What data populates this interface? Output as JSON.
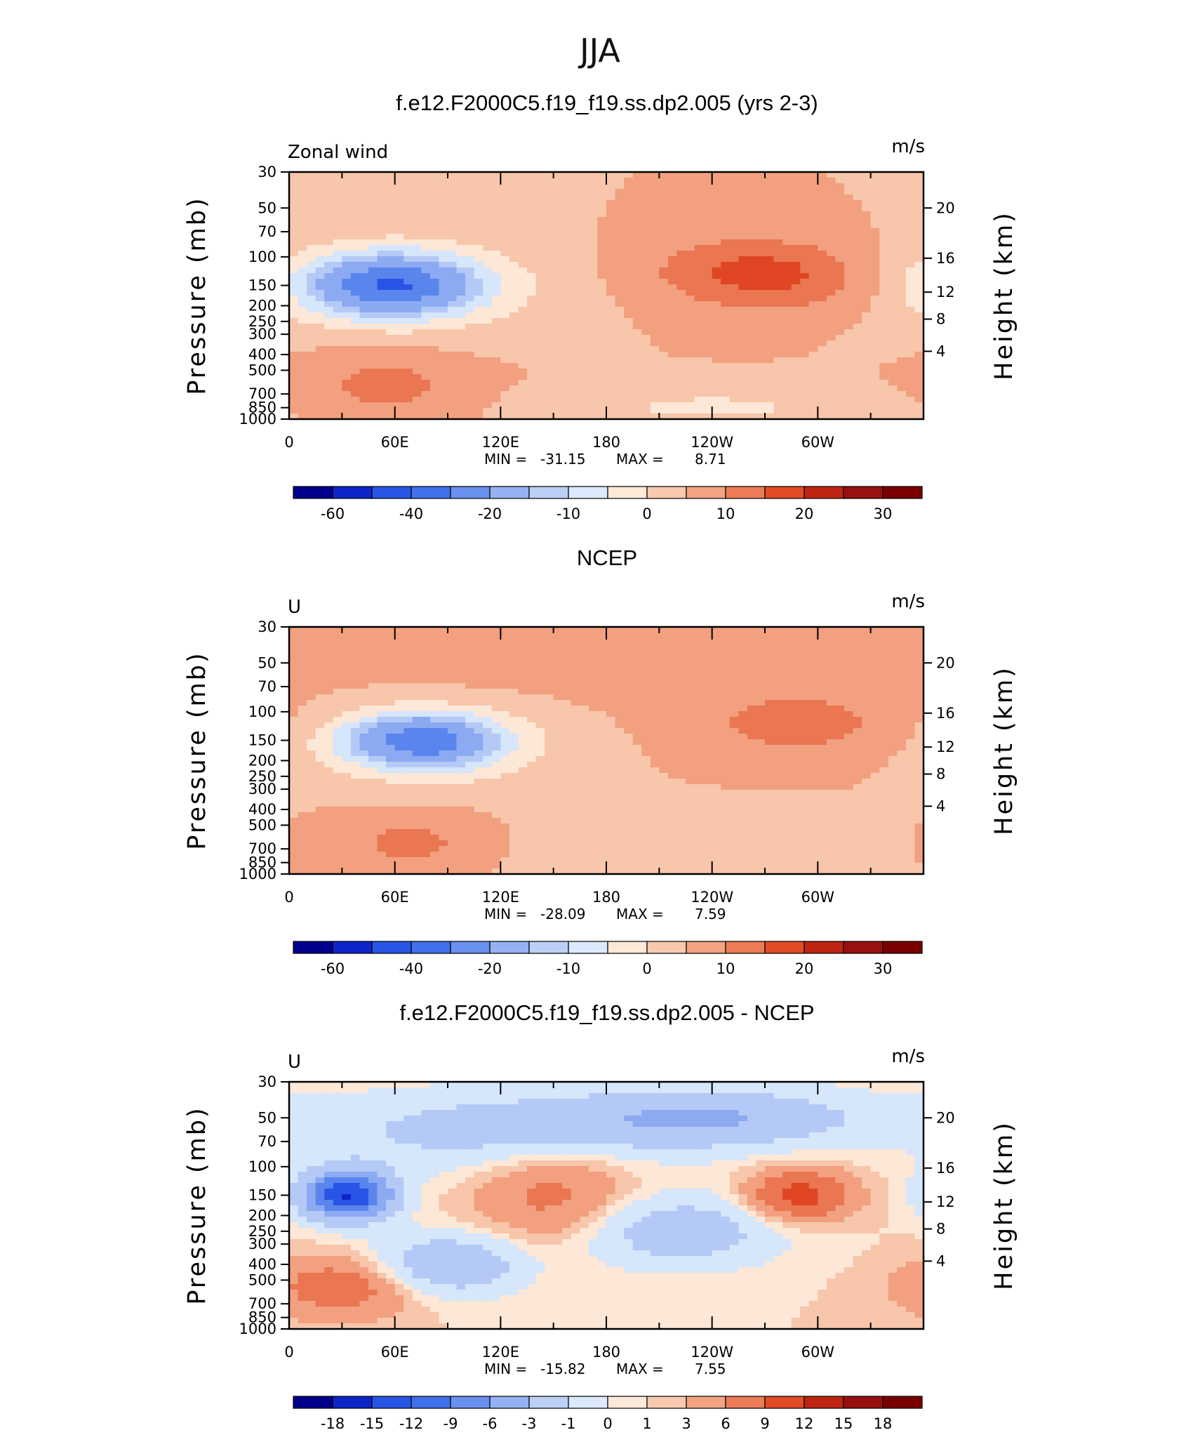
{
  "figure": {
    "season": "JJA"
  },
  "palette": {
    "standard": [
      "#00008c",
      "#0c25c9",
      "#2955e6",
      "#5a85ed",
      "#8caaf2",
      "#b4c9f5",
      "#d6e6fb",
      "#fde7d6",
      "#f7c6ab",
      "#f2a07f",
      "#ea7652",
      "#e04623",
      "#b81e10",
      "#8b0a0a",
      "#6b0000"
    ]
  },
  "x_ticks": [
    "0",
    "60E",
    "120E",
    "180",
    "120W",
    "60W"
  ],
  "p_ticks": [
    "30",
    "50",
    "70",
    "100",
    "150",
    "200",
    "250",
    "300",
    "400",
    "500",
    "700",
    "850",
    "1000"
  ],
  "h_ticks": [
    "20",
    "16",
    "12",
    "8",
    "4"
  ],
  "panels": [
    {
      "title": "f.e12.F2000C5.f19_f19.ss.dp2.005 (yrs 2-3)",
      "corner_left": "Zonal wind",
      "corner_right": "m/s",
      "ylabel_left": "Pressure (mb)",
      "ylabel_right": "Height (km)",
      "stats": {
        "min_label": "MIN =",
        "min": "-31.15",
        "max_label": "MAX =",
        "max": "8.71"
      },
      "colorbar_labels": [
        "-60",
        "-40",
        "-20",
        "-10",
        "0",
        "10",
        "20",
        "30"
      ],
      "chart_data": {
        "type": "heatmap",
        "variable": "Zonal wind",
        "units": "m/s",
        "min": -31.15,
        "max": 8.71,
        "levels": [
          -70,
          -60,
          -50,
          -40,
          -30,
          -20,
          -15,
          -10,
          -5,
          0,
          5,
          10,
          15,
          20,
          25,
          30
        ],
        "blobs": [
          {
            "lon": 57,
            "p": 150,
            "value": -30,
            "sx": 30,
            "sy": 0.28
          },
          {
            "lon": 62,
            "p": 150,
            "value": -12,
            "sx": 55,
            "sy": 0.45
          },
          {
            "lon": 255,
            "p": 120,
            "value": 8,
            "sx": 40,
            "sy": 0.35
          },
          {
            "lon": 290,
            "p": 140,
            "value": 6,
            "sx": 40,
            "sy": 0.35
          },
          {
            "lon": 55,
            "p": 600,
            "value": 7,
            "sx": 30,
            "sy": 0.35
          },
          {
            "lon": 240,
            "p": 850,
            "value": -6,
            "sx": 60,
            "sy": 0.2
          }
        ]
      }
    },
    {
      "title": "NCEP",
      "corner_left": "U",
      "corner_right": "m/s",
      "ylabel_left": "Pressure (mb)",
      "ylabel_right": "Height (km)",
      "stats": {
        "min_label": "MIN =",
        "min": "-28.09",
        "max_label": "MAX =",
        "max": "7.59"
      },
      "colorbar_labels": [
        "-60",
        "-40",
        "-20",
        "-10",
        "0",
        "10",
        "20",
        "30"
      ],
      "chart_data": {
        "type": "heatmap",
        "variable": "U",
        "units": "m/s",
        "min": -28.09,
        "max": 7.59,
        "levels": [
          -70,
          -60,
          -50,
          -40,
          -30,
          -20,
          -15,
          -10,
          -5,
          0,
          5,
          10,
          15,
          20,
          25,
          30
        ],
        "blobs": [
          {
            "lon": 75,
            "p": 150,
            "value": -28,
            "sx": 28,
            "sy": 0.25
          },
          {
            "lon": 80,
            "p": 160,
            "value": -10,
            "sx": 50,
            "sy": 0.4
          },
          {
            "lon": 290,
            "p": 120,
            "value": 7,
            "sx": 45,
            "sy": 0.35
          },
          {
            "lon": 70,
            "p": 650,
            "value": 7,
            "sx": 30,
            "sy": 0.3
          },
          {
            "lon": 180,
            "p": 45,
            "value": 2,
            "sx": 150,
            "sy": 0.5
          },
          {
            "lon": 200,
            "p": 700,
            "value": -2,
            "sx": 80,
            "sy": 0.4
          }
        ]
      }
    },
    {
      "title": "f.e12.F2000C5.f19_f19.ss.dp2.005 - NCEP",
      "corner_left": "U",
      "corner_right": "m/s",
      "ylabel_left": "Pressure (mb)",
      "ylabel_right": "Height (km)",
      "stats": {
        "min_label": "MIN =",
        "min": "-15.82",
        "max_label": "MAX =",
        "max": "7.55"
      },
      "colorbar_labels": [
        "-18",
        "-15",
        "-12",
        "-9",
        "-6",
        "-3",
        "-1",
        "0",
        "1",
        "3",
        "6",
        "9",
        "12",
        "15",
        "18"
      ],
      "chart_data": {
        "type": "heatmap",
        "variable": "U",
        "units": "m/s",
        "min": -15.82,
        "max": 7.55,
        "levels": [
          -21,
          -18,
          -15,
          -12,
          -9,
          -6,
          -3,
          -1,
          0,
          1,
          3,
          6,
          9,
          12,
          15,
          18
        ],
        "blobs": [
          {
            "lon": 33,
            "p": 150,
            "value": -15,
            "sx": 18,
            "sy": 0.25
          },
          {
            "lon": 290,
            "p": 150,
            "value": 7.5,
            "sx": 20,
            "sy": 0.25
          },
          {
            "lon": 150,
            "p": 150,
            "value": 4,
            "sx": 30,
            "sy": 0.5
          },
          {
            "lon": 30,
            "p": 550,
            "value": 5,
            "sx": 28,
            "sy": 0.3
          },
          {
            "lon": 240,
            "p": 50,
            "value": -6,
            "sx": 60,
            "sy": 0.3
          },
          {
            "lon": 220,
            "p": 250,
            "value": -5,
            "sx": 40,
            "sy": 0.35
          },
          {
            "lon": 90,
            "p": 400,
            "value": -6,
            "sx": 30,
            "sy": 0.3
          },
          {
            "lon": 110,
            "p": 60,
            "value": -4,
            "sx": 70,
            "sy": 0.4
          }
        ]
      }
    }
  ]
}
